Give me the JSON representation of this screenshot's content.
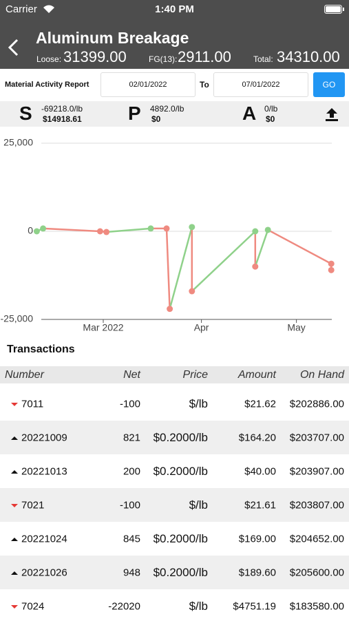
{
  "status": {
    "carrier": "Carrier",
    "time": "1:40 PM"
  },
  "header": {
    "title": "Aluminum Breakage",
    "loose_label": "Loose:",
    "loose": "31399.00",
    "fg_label": "FG(13):",
    "fg": "2911.00",
    "total_label": "Total:",
    "total": "34310.00"
  },
  "report": {
    "label": "Material Activity Report",
    "from": "02/01/2022",
    "to_label": "To",
    "to": "07/01/2022",
    "go": "GO"
  },
  "summary": [
    {
      "letter": "S",
      "qty": "-69218.0/lb",
      "amount": "$14918.61"
    },
    {
      "letter": "P",
      "qty": "4892.0/lb",
      "amount": "$0"
    },
    {
      "letter": "A",
      "qty": "0/lb",
      "amount": "$0"
    }
  ],
  "chart_data": {
    "type": "line",
    "x": [
      39,
      41,
      59,
      61,
      75,
      80,
      81,
      88,
      88,
      108,
      108,
      112,
      132,
      132
    ],
    "values": [
      0,
      800,
      0,
      -200,
      800,
      800,
      -22000,
      1200,
      -17000,
      0,
      -10000,
      400,
      -9200,
      -11000
    ],
    "up_color": "#8fd18a",
    "down_color": "#ef8a80",
    "xlim": [
      39,
      133
    ],
    "xticks": [
      {
        "value": 60,
        "label": "Mar 2022"
      },
      {
        "value": 91,
        "label": "Apr"
      },
      {
        "value": 121,
        "label": "May"
      }
    ],
    "ylim": [
      -25000,
      25000
    ],
    "yticks": [
      {
        "value": -25000,
        "label": "-25,000"
      },
      0,
      {
        "value": 25000,
        "label": "25,000"
      }
    ],
    "grid": true
  },
  "transactions": {
    "title": "Transactions",
    "columns": [
      "Number",
      "Net",
      "Price",
      "Amount",
      "On Hand"
    ],
    "rows": [
      [
        "7011",
        "-100",
        "$/lb",
        "$21.62",
        "$202886.00"
      ],
      [
        "20221009",
        "821",
        "$0.2000/lb",
        "$164.20",
        "$203707.00"
      ],
      [
        "20221013",
        "200",
        "$0.2000/lb",
        "$40.00",
        "$203907.00"
      ],
      [
        "7021",
        "-100",
        "$/lb",
        "$21.61",
        "$203807.00"
      ],
      [
        "20221024",
        "845",
        "$0.2000/lb",
        "$169.00",
        "$204652.00"
      ],
      [
        "20221026",
        "948",
        "$0.2000/lb",
        "$189.60",
        "$205600.00"
      ],
      [
        "7024",
        "-22020",
        "$/lb",
        "$4751.19",
        "$183580.00"
      ]
    ]
  }
}
